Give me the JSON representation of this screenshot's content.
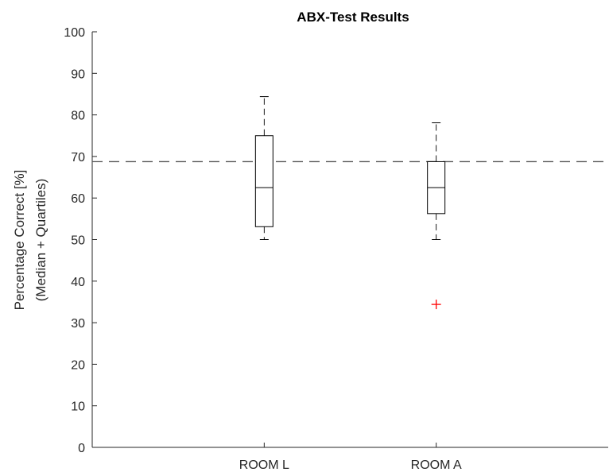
{
  "chart_data": {
    "type": "boxplot",
    "title": "ABX-Test Results",
    "ylabel_line1": "Percentage Correct [%]",
    "ylabel_line2": "(Median + Quartiles)",
    "xlabel": "",
    "ylim": [
      0,
      100
    ],
    "yticks": [
      0,
      10,
      20,
      30,
      40,
      50,
      60,
      70,
      80,
      90,
      100
    ],
    "grid": false,
    "reference_line": {
      "value": 68.75,
      "style": "dashed"
    },
    "categories": [
      "ROOM L",
      "ROOM A"
    ],
    "boxes": [
      {
        "category": "ROOM L",
        "whisker_low": 50,
        "q1": 53.1,
        "median": 62.5,
        "q3": 75,
        "whisker_high": 84.4,
        "outliers": []
      },
      {
        "category": "ROOM A",
        "whisker_low": 50,
        "q1": 56.25,
        "median": 62.5,
        "q3": 68.75,
        "whisker_high": 78.1,
        "outliers": [
          34.4
        ]
      }
    ],
    "colors": {
      "box": "#000000",
      "outlier": "#ff0000",
      "reference": "#555555",
      "axis": "#262626"
    }
  }
}
